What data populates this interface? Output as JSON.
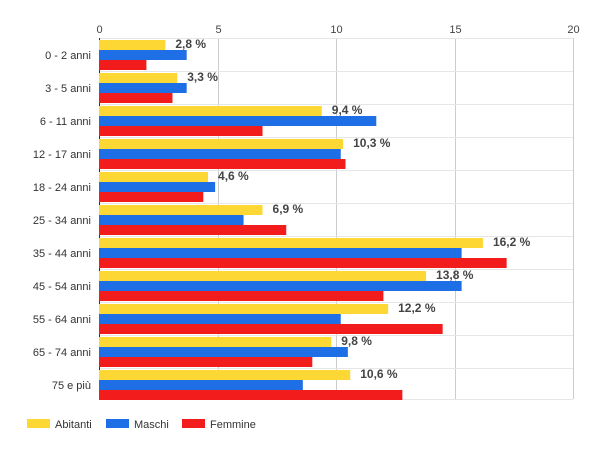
{
  "chart_data": {
    "type": "bar",
    "orientation": "horizontal",
    "categories": [
      "0 - 2 anni",
      "3 - 5 anni",
      "6 - 11 anni",
      "12 - 17 anni",
      "18 - 24 anni",
      "25 - 34 anni",
      "35 - 44 anni",
      "45 - 54 anni",
      "55 - 64 anni",
      "65 - 74 anni",
      "75 e più"
    ],
    "series": [
      {
        "name": "Abitanti",
        "color": "#fdd835",
        "values": [
          2.8,
          3.3,
          9.4,
          10.3,
          4.6,
          6.9,
          16.2,
          13.8,
          12.2,
          9.8,
          10.6
        ]
      },
      {
        "name": "Maschi",
        "color": "#1e6ee6",
        "values": [
          3.7,
          3.7,
          11.7,
          10.2,
          4.9,
          6.1,
          15.3,
          15.3,
          10.2,
          10.5,
          8.6
        ]
      },
      {
        "name": "Femmine",
        "color": "#f21c1c",
        "values": [
          2.0,
          3.1,
          6.9,
          10.4,
          4.4,
          7.9,
          17.2,
          12.0,
          14.5,
          9.0,
          12.8
        ]
      }
    ],
    "data_labels": [
      "2,8 %",
      "3,3 %",
      "9,4 %",
      "10,3 %",
      "4,6 %",
      "6,9 %",
      "16,2 %",
      "13,8 %",
      "12,2 %",
      "9,8 %",
      "10,6 %"
    ],
    "data_labels_series": "Abitanti",
    "xlim": [
      0,
      20
    ],
    "x_ticks": [
      0,
      5,
      10,
      15,
      20
    ],
    "x_tick_labels": [
      "0",
      "5",
      "10",
      "15",
      "20"
    ],
    "xaxis_position": "top",
    "grid": true,
    "legend_position": "bottom-left",
    "title": "",
    "xlabel": "",
    "ylabel": ""
  }
}
